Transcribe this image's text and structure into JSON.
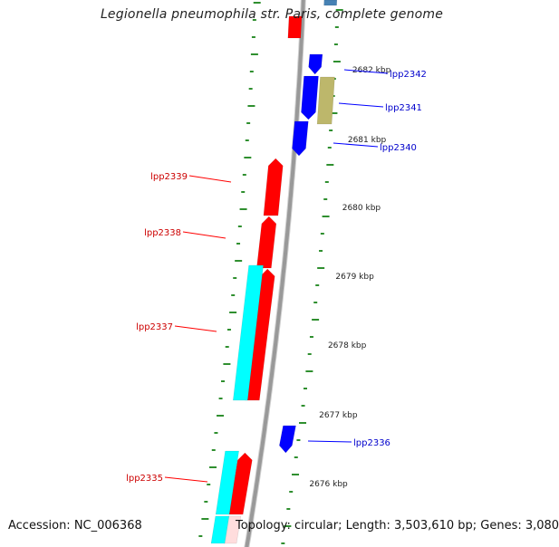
{
  "header": {
    "title": "Legionella pneumophila str. Paris, complete genome"
  },
  "footer": {
    "accession": "Accession: NC_006368",
    "topology": "Topology: circular; Length: 3,503,610 bp; Genes: 3,080"
  },
  "colors": {
    "backbone": "#999999",
    "gc_tick": "#2f8f2f",
    "forward_gene": "#0000ff",
    "reverse_gene": "#ff0000",
    "feature_cyan": "#00ffff",
    "feature_khaki": "#bdb76b",
    "forward_label": "#0000cc",
    "reverse_label": "#cc0000",
    "position_label": "#222222"
  },
  "map": {
    "position_labels": [
      "2682 kbp",
      "2681 kbp",
      "2680 kbp",
      "2679 kbp",
      "2678 kbp",
      "2677 kbp",
      "2676 kbp"
    ],
    "forward_gene_labels": [
      "lpp2342",
      "lpp2341",
      "lpp2340",
      "lpp2336"
    ],
    "reverse_gene_labels": [
      "lpp2339",
      "lpp2338",
      "lpp2337",
      "lpp2335"
    ]
  }
}
